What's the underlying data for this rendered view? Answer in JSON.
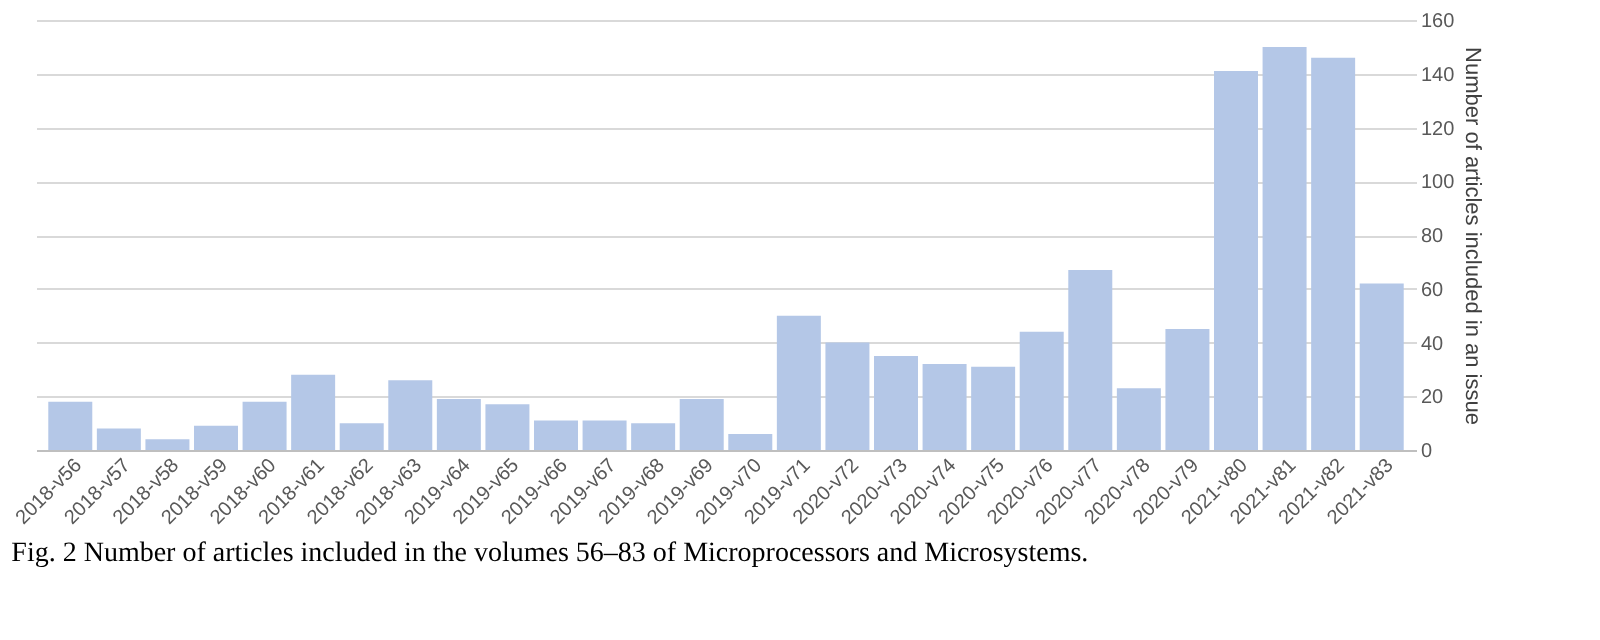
{
  "chart_data": {
    "type": "bar",
    "categories": [
      "2018-v56",
      "2018-v57",
      "2018-v58",
      "2018-v59",
      "2018-v60",
      "2018-v61",
      "2018-v62",
      "2018-v63",
      "2019-v64",
      "2019-v65",
      "2019-v66",
      "2019-v67",
      "2019-v68",
      "2019-v69",
      "2019-v70",
      "2019-v71",
      "2020-v72",
      "2020-v73",
      "2020-v74",
      "2020-v75",
      "2020-v76",
      "2020-v77",
      "2020-v78",
      "2020-v79",
      "2021-v80",
      "2021-v81",
      "2021-v82",
      "2021-v83"
    ],
    "values": [
      18,
      8,
      4,
      9,
      18,
      28,
      10,
      26,
      19,
      17,
      11,
      11,
      10,
      19,
      6,
      50,
      40,
      35,
      32,
      31,
      44,
      67,
      23,
      45,
      141,
      150,
      146,
      62
    ],
    "color": "#b4c7e7",
    "ylabel": "Number of articles included in an issue",
    "ylim": [
      0,
      160
    ],
    "yticks": [
      0,
      20,
      40,
      60,
      80,
      100,
      120,
      140,
      160
    ],
    "grid": "y",
    "annotations": [
      "Fig. 2  Number of articles included in the volumes 56–83 of Microprocessors and Microsystems."
    ]
  }
}
